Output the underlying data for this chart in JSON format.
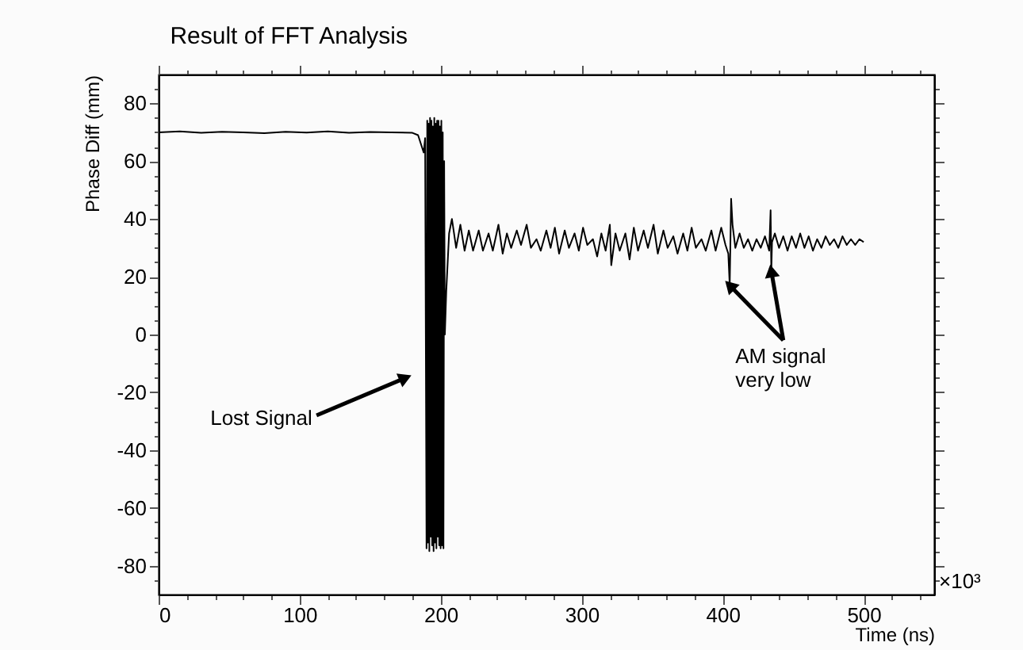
{
  "chart_data": {
    "type": "line",
    "title": "Result of FFT Analysis",
    "xlabel": "Time (ns)",
    "ylabel": "Phase Diff (mm)",
    "x": [
      0,
      15,
      30,
      45,
      60,
      75,
      90,
      105,
      120,
      135,
      150,
      165,
      180,
      184,
      186,
      188,
      189,
      190,
      190.5,
      191,
      191.5,
      192,
      192.5,
      193,
      193.5,
      194,
      194.5,
      195,
      195.5,
      196,
      196.5,
      197,
      197.5,
      198,
      198.5,
      199,
      199.5,
      200,
      200.5,
      201,
      201.5,
      202,
      202.5,
      203,
      204,
      205,
      206,
      208,
      211,
      214,
      217,
      220,
      223,
      227,
      230,
      234,
      237,
      241,
      244,
      247,
      250,
      254,
      257,
      261,
      264,
      268,
      271,
      275,
      278,
      281,
      284,
      288,
      291,
      295,
      298,
      301,
      304,
      308,
      311,
      314,
      317,
      320,
      321,
      324,
      327,
      331,
      334,
      337,
      340,
      344,
      347,
      351,
      354,
      358,
      361,
      365,
      368,
      372,
      375,
      378,
      381,
      385,
      388,
      392,
      395,
      399,
      402,
      404,
      405,
      406,
      407,
      409,
      412,
      415,
      418,
      421,
      424,
      427,
      430,
      433,
      434,
      434.5,
      435,
      437,
      440,
      443,
      446,
      449,
      452,
      455,
      458,
      461,
      464,
      467,
      470,
      473,
      476,
      479,
      482,
      485,
      488,
      491,
      494,
      497,
      500
    ],
    "values": [
      70,
      70.3,
      69.8,
      70.2,
      70,
      69.7,
      70.2,
      69.9,
      70.3,
      69.8,
      70.1,
      70,
      69.8,
      69,
      66,
      63,
      68,
      -74,
      74,
      -72,
      73,
      -75,
      75,
      -70,
      74,
      -73,
      72,
      -75,
      75,
      -72,
      73,
      -74,
      74,
      -70,
      74,
      -73,
      72,
      -74,
      74,
      -73,
      70,
      -74,
      60,
      0,
      15,
      25,
      35,
      40,
      30,
      38,
      29,
      36,
      29,
      36,
      29,
      35,
      29,
      38,
      28,
      35,
      30,
      36,
      31,
      38,
      30,
      33,
      29,
      36,
      30,
      37,
      28,
      36,
      30,
      35,
      29,
      37,
      31,
      33,
      27,
      35,
      29,
      38,
      24,
      35,
      29,
      35,
      26,
      37,
      29,
      36,
      30,
      38,
      28,
      36,
      30,
      34,
      28,
      35,
      29,
      37,
      30,
      33,
      29,
      36,
      29,
      37,
      31,
      28,
      17,
      47,
      38,
      30,
      35,
      30,
      33,
      29,
      33,
      30,
      34,
      29,
      43,
      22,
      32,
      35,
      30,
      34,
      29,
      34,
      30,
      35,
      30,
      34,
      29,
      33,
      30,
      34,
      31,
      33,
      30,
      34,
      31,
      33,
      31,
      33,
      32
    ],
    "color": "#000000",
    "xlim": [
      0,
      550
    ],
    "ylim": [
      -90,
      90
    ],
    "xticks": [
      0,
      {
        "value": 20,
        "label": null
      },
      {
        "value": 40,
        "label": null
      },
      {
        "value": 60,
        "label": null
      },
      {
        "value": 80,
        "label": null
      },
      100,
      {
        "value": 120,
        "label": null
      },
      {
        "value": 140,
        "label": null
      },
      {
        "value": 160,
        "label": null
      },
      {
        "value": 180,
        "label": null
      },
      200,
      {
        "value": 220,
        "label": null
      },
      {
        "value": 240,
        "label": null
      },
      {
        "value": 260,
        "label": null
      },
      {
        "value": 280,
        "label": null
      },
      300,
      {
        "value": 320,
        "label": null
      },
      {
        "value": 340,
        "label": null
      },
      {
        "value": 360,
        "label": null
      },
      {
        "value": 380,
        "label": null
      },
      400,
      {
        "value": 420,
        "label": null
      },
      {
        "value": 440,
        "label": null
      },
      {
        "value": 460,
        "label": null
      },
      {
        "value": 480,
        "label": null
      },
      500,
      {
        "value": 520,
        "label": null
      },
      {
        "value": 540,
        "label": null
      }
    ],
    "yticks": [
      {
        "value": -85,
        "label": null
      },
      -80,
      {
        "value": -75,
        "label": null
      },
      {
        "value": -70,
        "label": null
      },
      {
        "value": -65,
        "label": null
      },
      -60,
      {
        "value": -55,
        "label": null
      },
      {
        "value": -50,
        "label": null
      },
      {
        "value": -45,
        "label": null
      },
      -40,
      {
        "value": -35,
        "label": null
      },
      {
        "value": -30,
        "label": null
      },
      {
        "value": -25,
        "label": null
      },
      -20,
      {
        "value": -15,
        "label": null
      },
      {
        "value": -10,
        "label": null
      },
      {
        "value": -5,
        "label": null
      },
      0,
      {
        "value": 5,
        "label": null
      },
      {
        "value": 10,
        "label": null
      },
      {
        "value": 15,
        "label": null
      },
      20,
      {
        "value": 25,
        "label": null
      },
      {
        "value": 30,
        "label": null
      },
      {
        "value": 35,
        "label": null
      },
      40,
      {
        "value": 45,
        "label": null
      },
      {
        "value": 50,
        "label": null
      },
      {
        "value": 55,
        "label": null
      },
      60,
      {
        "value": 65,
        "label": null
      },
      {
        "value": 70,
        "label": null
      },
      {
        "value": 75,
        "label": null
      },
      80,
      {
        "value": 85,
        "label": null
      }
    ],
    "grid": false,
    "line_style": "solid",
    "marker": "none",
    "annotations": [
      {
        "text": "Lost Signal",
        "x": 175,
        "y": -15
      },
      {
        "text": "AM signal\nvery low",
        "x": 405,
        "y": 17
      },
      "×10³"
    ]
  }
}
